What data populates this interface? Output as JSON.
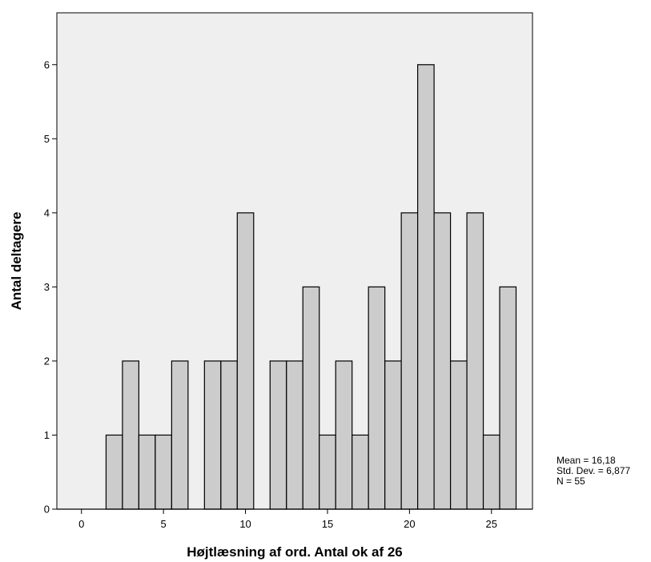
{
  "chart_data": {
    "type": "bar",
    "subtype": "histogram",
    "xlabel": "Højtlæsning af ord. Antal ok af 26",
    "ylabel": "Antal deltagere",
    "bin_width": 1,
    "bins": [
      {
        "x": 0,
        "count": 0
      },
      {
        "x": 1,
        "count": 0
      },
      {
        "x": 2,
        "count": 1
      },
      {
        "x": 3,
        "count": 2
      },
      {
        "x": 4,
        "count": 1
      },
      {
        "x": 5,
        "count": 1
      },
      {
        "x": 6,
        "count": 2
      },
      {
        "x": 7,
        "count": 0
      },
      {
        "x": 8,
        "count": 2
      },
      {
        "x": 9,
        "count": 2
      },
      {
        "x": 10,
        "count": 4
      },
      {
        "x": 11,
        "count": 0
      },
      {
        "x": 12,
        "count": 2
      },
      {
        "x": 13,
        "count": 2
      },
      {
        "x": 14,
        "count": 3
      },
      {
        "x": 15,
        "count": 1
      },
      {
        "x": 16,
        "count": 2
      },
      {
        "x": 17,
        "count": 1
      },
      {
        "x": 18,
        "count": 3
      },
      {
        "x": 19,
        "count": 2
      },
      {
        "x": 20,
        "count": 4
      },
      {
        "x": 21,
        "count": 6
      },
      {
        "x": 22,
        "count": 4
      },
      {
        "x": 23,
        "count": 2
      },
      {
        "x": 24,
        "count": 4
      },
      {
        "x": 25,
        "count": 1
      },
      {
        "x": 26,
        "count": 3
      }
    ],
    "xlim": [
      -1.5,
      27.5
    ],
    "ylim": [
      0,
      6.7
    ],
    "xticks": [
      0,
      5,
      10,
      15,
      20,
      25
    ],
    "yticks": [
      0,
      1,
      2,
      3,
      4,
      5,
      6
    ],
    "grid": false,
    "colors": {
      "plot_background": "#efefef",
      "bar_fill": "#cccccc",
      "bar_stroke": "#000000"
    }
  },
  "stats": {
    "mean": "Mean = 16,18",
    "std": "Std. Dev. = 6,877",
    "n": "N = 55"
  }
}
